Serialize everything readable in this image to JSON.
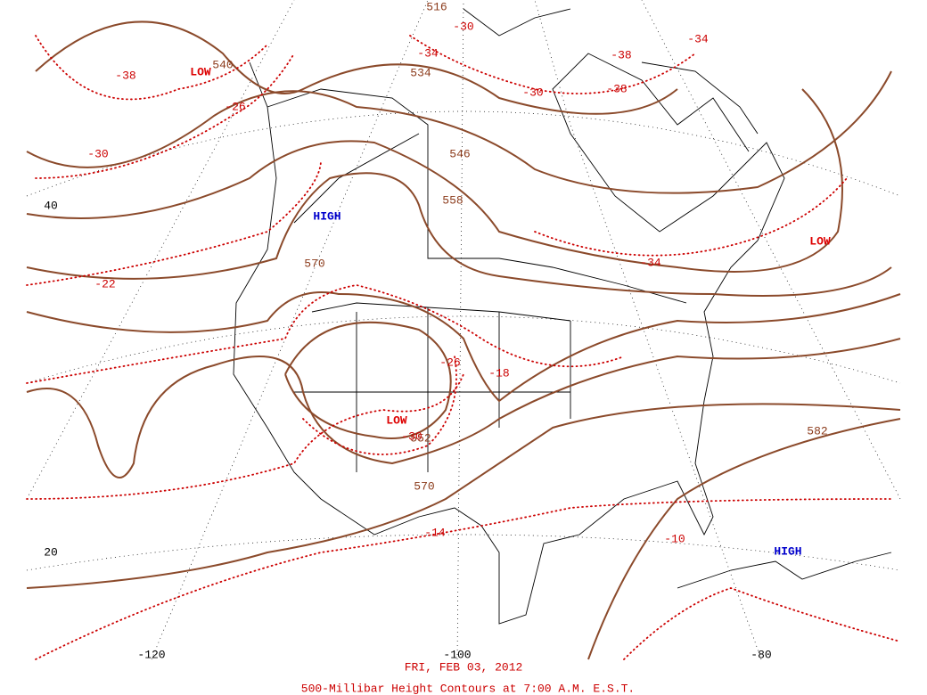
{
  "caption": {
    "date": "FRI, FEB 03, 2012",
    "title": "500-Millibar Height Contours at 7:00 A.M. E.S.T."
  },
  "pressure_centers": [
    "LOW",
    "HIGH",
    "LOW",
    "LOW",
    "HIGH"
  ],
  "height_labels": [
    "516",
    "534",
    "546",
    "558",
    "570",
    "540",
    "570",
    "582",
    "552"
  ],
  "temperature_labels": [
    "-38",
    "-26",
    "-30",
    "-22",
    "-34",
    "-30",
    "-38",
    "-38",
    "-30",
    "-34",
    "-34",
    "-26",
    "-18",
    "-14",
    "-10",
    "-30"
  ],
  "grid_labels": [
    "40",
    "20",
    "-120",
    "-100",
    "-80"
  ]
}
